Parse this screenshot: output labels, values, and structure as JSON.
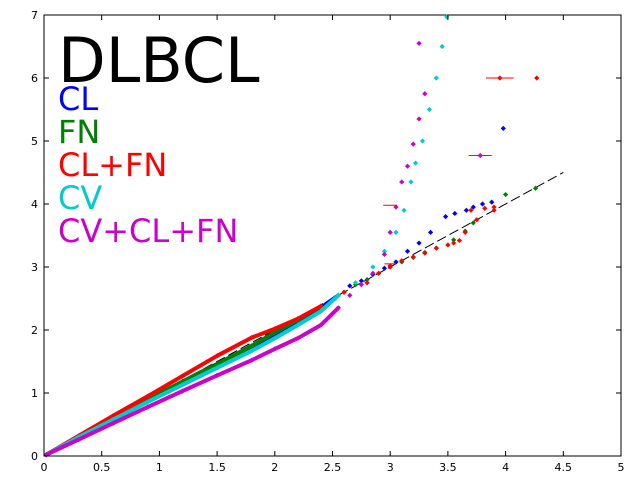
{
  "chart_data": {
    "type": "scatter",
    "title": "DLBCL",
    "xlabel": "",
    "ylabel": "",
    "xlim": [
      0,
      5
    ],
    "ylim": [
      0,
      7
    ],
    "x_ticks": [
      "0",
      "0.5",
      "1",
      "1.5",
      "2",
      "2.5",
      "3",
      "3.5",
      "4",
      "4.5",
      "5"
    ],
    "y_ticks": [
      "0",
      "1",
      "2",
      "3",
      "4",
      "5",
      "6",
      "7"
    ],
    "grid": false,
    "legend_position": "top-left",
    "reference_line": {
      "style": "dashed",
      "color": "#000000",
      "points": [
        [
          0,
          0
        ],
        [
          4.5,
          4.5
        ]
      ]
    },
    "series": [
      {
        "name": "CL",
        "color": "#0000ff",
        "points": [
          [
            0.02,
            0.02
          ],
          [
            0.3,
            0.31
          ],
          [
            0.6,
            0.6
          ],
          [
            0.9,
            0.89
          ],
          [
            1.2,
            1.18
          ],
          [
            1.5,
            1.46
          ],
          [
            1.8,
            1.74
          ],
          [
            2.0,
            1.93
          ],
          [
            2.2,
            2.12
          ],
          [
            2.35,
            2.28
          ],
          [
            2.45,
            2.42
          ],
          [
            2.55,
            2.55
          ],
          [
            2.65,
            2.7
          ],
          [
            2.75,
            2.78
          ],
          [
            2.85,
            2.88
          ],
          [
            2.95,
            2.98
          ],
          [
            3.05,
            3.08
          ],
          [
            3.15,
            3.25
          ],
          [
            3.25,
            3.38
          ],
          [
            3.35,
            3.55
          ],
          [
            3.48,
            3.8
          ],
          [
            3.56,
            3.85
          ],
          [
            3.66,
            3.9
          ],
          [
            3.72,
            3.95
          ],
          [
            3.8,
            4.0
          ],
          [
            3.88,
            4.03
          ],
          [
            3.98,
            5.2
          ]
        ]
      },
      {
        "name": "FN",
        "color": "#008000",
        "points": [
          [
            0.02,
            0.02
          ],
          [
            0.3,
            0.31
          ],
          [
            0.6,
            0.61
          ],
          [
            0.9,
            0.9
          ],
          [
            1.2,
            1.18
          ],
          [
            1.5,
            1.46
          ],
          [
            1.8,
            1.75
          ],
          [
            2.0,
            1.96
          ],
          [
            2.2,
            2.16
          ],
          [
            2.4,
            2.38
          ],
          [
            2.6,
            2.6
          ],
          [
            2.7,
            2.72
          ],
          [
            2.8,
            2.8
          ],
          [
            2.9,
            2.9
          ],
          [
            3.0,
            3.0
          ],
          [
            3.1,
            3.08
          ],
          [
            3.2,
            3.15
          ],
          [
            3.3,
            3.23
          ],
          [
            3.4,
            3.3
          ],
          [
            3.55,
            3.43
          ],
          [
            3.65,
            3.57
          ],
          [
            3.72,
            3.7
          ],
          [
            4.0,
            4.15
          ],
          [
            4.26,
            4.25
          ]
        ]
      },
      {
        "name": "CL+FN",
        "color": "#ff0000",
        "points": [
          [
            0.02,
            0.02
          ],
          [
            0.3,
            0.32
          ],
          [
            0.6,
            0.64
          ],
          [
            0.9,
            0.95
          ],
          [
            1.2,
            1.27
          ],
          [
            1.5,
            1.59
          ],
          [
            1.8,
            1.88
          ],
          [
            2.0,
            2.02
          ],
          [
            2.2,
            2.18
          ],
          [
            2.4,
            2.38
          ],
          [
            2.6,
            2.6
          ],
          [
            2.8,
            2.75
          ],
          [
            2.9,
            2.9
          ],
          [
            3.0,
            3.02
          ],
          [
            3.1,
            3.1
          ],
          [
            3.2,
            3.16
          ],
          [
            3.3,
            3.22
          ],
          [
            3.4,
            3.3
          ],
          [
            3.5,
            3.35
          ],
          [
            3.55,
            3.38
          ],
          [
            3.6,
            3.42
          ],
          [
            3.65,
            3.55
          ],
          [
            3.75,
            3.75
          ],
          [
            3.9,
            3.9
          ],
          [
            3.0,
            3.0
          ],
          [
            3.7,
            3.9
          ],
          [
            3.82,
            3.93
          ],
          [
            3.9,
            3.95
          ],
          [
            3.95,
            6.0
          ],
          [
            4.27,
            6.0
          ]
        ]
      },
      {
        "name": "CV",
        "color": "#00cccc",
        "points": [
          [
            0.02,
            0.02
          ],
          [
            0.3,
            0.3
          ],
          [
            0.6,
            0.58
          ],
          [
            0.9,
            0.86
          ],
          [
            1.2,
            1.13
          ],
          [
            1.5,
            1.4
          ],
          [
            1.8,
            1.67
          ],
          [
            2.0,
            1.87
          ],
          [
            2.2,
            2.08
          ],
          [
            2.4,
            2.3
          ],
          [
            2.55,
            2.55
          ],
          [
            2.7,
            2.75
          ],
          [
            2.85,
            3.0
          ],
          [
            2.95,
            3.25
          ],
          [
            3.05,
            3.55
          ],
          [
            3.12,
            3.9
          ],
          [
            3.18,
            4.35
          ],
          [
            3.22,
            4.65
          ],
          [
            3.28,
            5.0
          ],
          [
            3.34,
            5.5
          ],
          [
            3.4,
            6.0
          ],
          [
            3.45,
            6.5
          ],
          [
            3.49,
            6.97
          ]
        ]
      },
      {
        "name": "CV+CL+FN",
        "color": "#cc00cc",
        "points": [
          [
            0.02,
            0.02
          ],
          [
            0.3,
            0.26
          ],
          [
            0.6,
            0.52
          ],
          [
            0.9,
            0.78
          ],
          [
            1.2,
            1.03
          ],
          [
            1.5,
            1.28
          ],
          [
            1.8,
            1.52
          ],
          [
            2.0,
            1.7
          ],
          [
            2.2,
            1.87
          ],
          [
            2.4,
            2.08
          ],
          [
            2.55,
            2.35
          ],
          [
            2.65,
            2.55
          ],
          [
            2.75,
            2.72
          ],
          [
            2.85,
            2.9
          ],
          [
            2.95,
            3.2
          ],
          [
            3.0,
            3.55
          ],
          [
            3.05,
            3.95
          ],
          [
            3.1,
            4.35
          ],
          [
            3.15,
            4.6
          ],
          [
            3.2,
            4.95
          ],
          [
            3.25,
            5.35
          ],
          [
            3.3,
            5.75
          ],
          [
            3.25,
            6.55
          ],
          [
            3.78,
            4.77
          ]
        ]
      }
    ]
  }
}
